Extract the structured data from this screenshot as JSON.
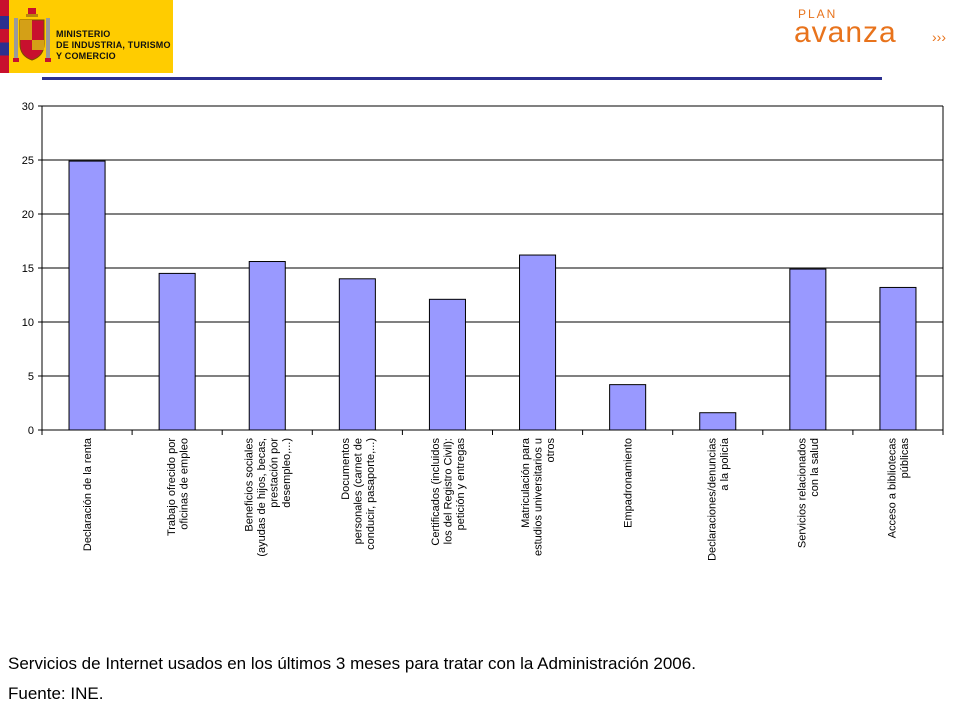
{
  "header": {
    "ministry_lines": [
      "MINISTERIO",
      "DE INDUSTRIA, TURISMO",
      "Y COMERCIO"
    ],
    "brand": {
      "small": "PLAN",
      "main": "avanza",
      "color": "#e8731c"
    },
    "rule_color": "#2b2f8f"
  },
  "chart_data": {
    "type": "bar",
    "categories": [
      "Declaración de la renta",
      "Trabajo ofrecido por oficinas de empleo",
      "Beneficios sociales (ayudas de hijos, becas, prestación por desempleo,...)",
      "Documentos personales (carnet de conducir, pasaporte,...)",
      "Certificados (incluidos los del Registro Civil): petición y entregas",
      "Matriculación para estudios universitarios u otros",
      "Empadronamiento",
      "Declaraciones/denuncias a la policía",
      "Servicios relacionados con la salud",
      "Acceso a bibliotecas públicas"
    ],
    "category_lines": [
      [
        "Declaración de la renta"
      ],
      [
        "Trabajo ofrecido por",
        "oficinas de empleo"
      ],
      [
        "Beneficios sociales",
        "(ayudas de hijos, becas,",
        "prestación por",
        "desempleo,...)"
      ],
      [
        "Documentos",
        "personales (carnet de",
        "conducir, pasaporte,...)"
      ],
      [
        "Certificados (incluidos",
        "los del Registro Civil):",
        "petición y entregas"
      ],
      [
        "Matriculación para",
        "estudios universitarios u",
        "otros"
      ],
      [
        "Empadronamiento"
      ],
      [
        "Declaraciones/denuncias",
        "a la policía"
      ],
      [
        "Servicios relacionados",
        "con la salud"
      ],
      [
        "Acceso a bibliotecas",
        "públicas"
      ]
    ],
    "values": [
      24.9,
      14.5,
      15.6,
      14.0,
      12.1,
      16.2,
      4.2,
      1.6,
      14.9,
      13.2
    ],
    "ylim": [
      0,
      30
    ],
    "yticks": [
      0,
      5,
      10,
      15,
      20,
      25,
      30
    ],
    "grid": true,
    "bar_color": "#9999ff"
  },
  "caption": {
    "line1": "Servicios de Internet usados en los últimos 3 meses para tratar con la Administración 2006.",
    "line2": "Fuente: INE."
  }
}
